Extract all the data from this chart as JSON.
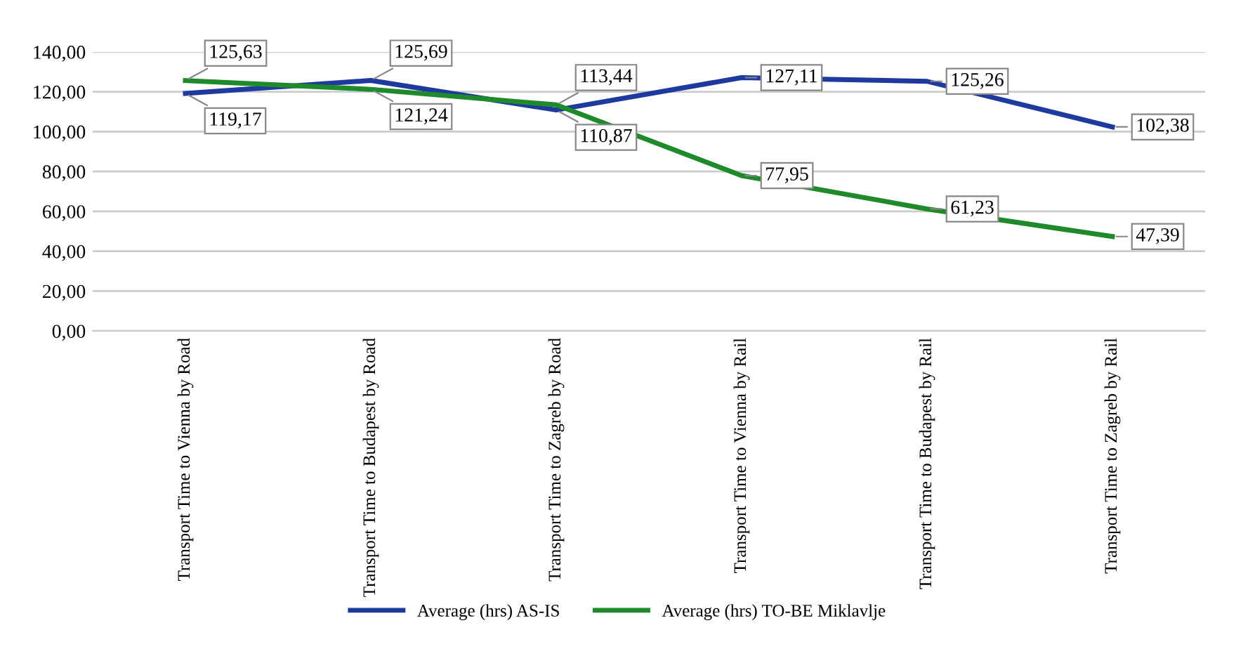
{
  "chart_data": {
    "type": "line",
    "categories": [
      "Transport Time to Vienna by Road",
      "Transport Time to Budapest by Road",
      "Transport Time to Zagreb by Road",
      "Transport Time to Vienna by Rail",
      "Transport Time to Budapest by Rail",
      "Transport Time to Zagreb by Rail"
    ],
    "series": [
      {
        "name": "Average (hrs) AS-IS",
        "color": "#1f3a9e",
        "values": [
          119.17,
          125.69,
          110.87,
          127.11,
          125.26,
          102.38
        ],
        "value_labels": [
          "119,17",
          "125,69",
          "110,87",
          "127,11",
          "125,26",
          "102,38"
        ]
      },
      {
        "name": "Average (hrs) TO-BE Miklavlje",
        "color": "#1e8a2a",
        "values": [
          125.63,
          121.24,
          113.44,
          77.95,
          61.23,
          47.39
        ],
        "value_labels": [
          "125,63",
          "121,24",
          "113,44",
          "77,95",
          "61,23",
          "47,39"
        ]
      }
    ],
    "ylim": [
      0,
      140
    ],
    "yticks": [
      {
        "value": 0,
        "label": "0,00"
      },
      {
        "value": 20,
        "label": "20,00"
      },
      {
        "value": 40,
        "label": "40,00"
      },
      {
        "value": 60,
        "label": "60,00"
      },
      {
        "value": 80,
        "label": "80,00"
      },
      {
        "value": 100,
        "label": "100,00"
      },
      {
        "value": 120,
        "label": "120,00"
      },
      {
        "value": 140,
        "label": "140,00"
      }
    ],
    "grid": "y",
    "legend": "bottom",
    "marker": "none",
    "line_style": "solid"
  }
}
